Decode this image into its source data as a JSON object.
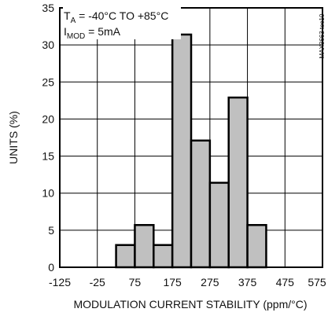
{
  "chart_data": {
    "type": "bar",
    "bin_width": 50,
    "bins": [
      {
        "center": 50,
        "value": 3
      },
      {
        "center": 100,
        "value": 5.7
      },
      {
        "center": 150,
        "value": 3
      },
      {
        "center": 200,
        "value": 31.4
      },
      {
        "center": 250,
        "value": 17.1
      },
      {
        "center": 300,
        "value": 11.4
      },
      {
        "center": 350,
        "value": 22.9
      },
      {
        "center": 400,
        "value": 5.7
      }
    ],
    "xlabel": "MODULATION CURRENT STABILITY (ppm/°C)",
    "ylabel": "UNITS (%)",
    "xlim": [
      -125,
      575
    ],
    "ylim": [
      0,
      35
    ],
    "xticks": [
      -125,
      -25,
      75,
      175,
      275,
      375,
      475,
      575
    ],
    "yticks": [
      0,
      5,
      10,
      15,
      20,
      25,
      30,
      35
    ],
    "grid": true,
    "annotation": {
      "line1_main": "T",
      "line1_sub": "A",
      "line1_rest": " = -40°C TO +85°C",
      "line2_main": "I",
      "line2_sub": "MOD",
      "line2_rest": " = 5mA"
    },
    "figure_id": "MAX3663 toc10",
    "colors": {
      "bar_fill": "#c0c0c0",
      "bar_stroke": "#000000",
      "grid": "#000000"
    }
  }
}
